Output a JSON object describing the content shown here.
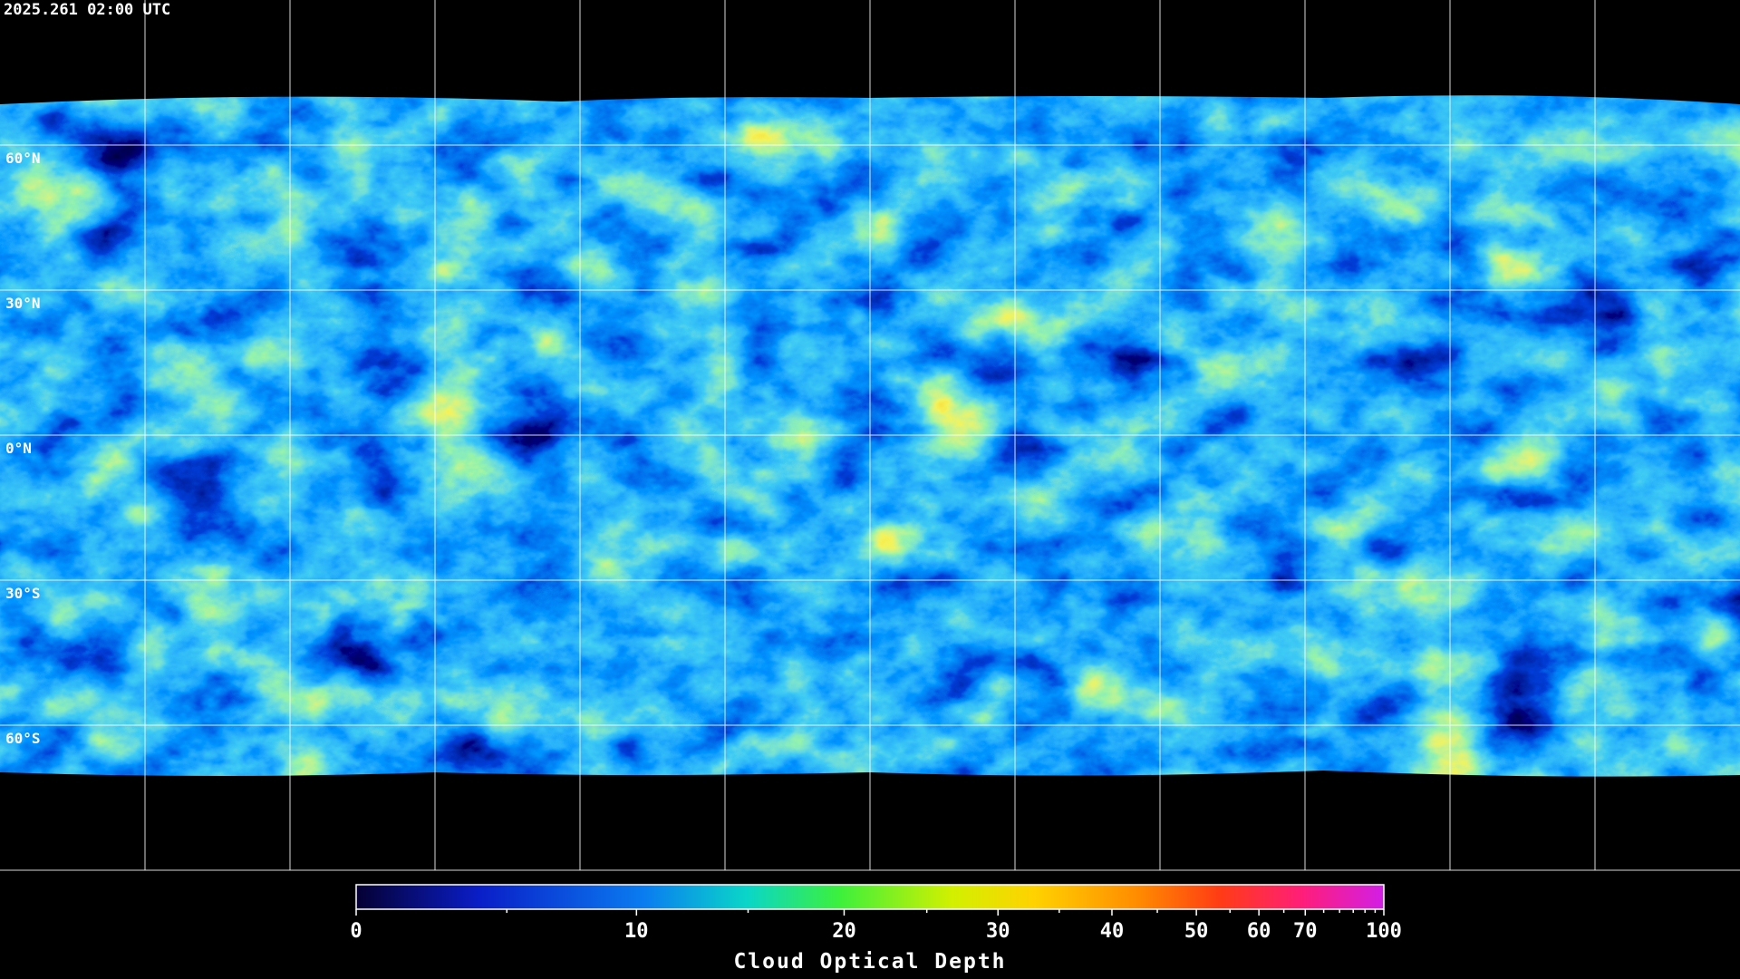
{
  "header": {
    "timestamp": "2025.261 02:00 UTC"
  },
  "map": {
    "lat_labels": [
      "60°N",
      "30°N",
      "0°N",
      "30°S",
      "60°S"
    ]
  },
  "colorbar": {
    "title": "Cloud Optical Depth",
    "range": [
      0,
      100
    ],
    "ticks": [
      0,
      10,
      20,
      30,
      40,
      50,
      60,
      70,
      100
    ],
    "minor_ticks": [
      5,
      15,
      25,
      35,
      45,
      55,
      65,
      75,
      80,
      85,
      90,
      95
    ]
  }
}
